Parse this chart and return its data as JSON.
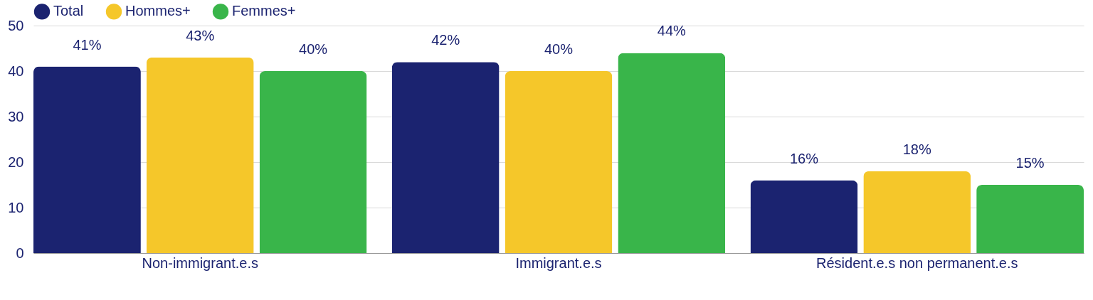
{
  "chart_data": {
    "type": "bar",
    "categories": [
      "Non-immigrant.e.s",
      "Immigrant.e.s",
      "Résident.e.s non permanent.e.s"
    ],
    "series": [
      {
        "name": "Total",
        "color": "#1b2370",
        "values": [
          41,
          42,
          16
        ],
        "value_labels": [
          "41%",
          "42%",
          "16%"
        ]
      },
      {
        "name": "Hommes+",
        "color": "#f5c72a",
        "values": [
          43,
          40,
          18
        ],
        "value_labels": [
          "43%",
          "40%",
          "18%"
        ]
      },
      {
        "name": "Femmes+",
        "color": "#39b54a",
        "values": [
          40,
          44,
          15
        ],
        "value_labels": [
          "40%",
          "44%",
          "15%"
        ]
      }
    ],
    "ylim": [
      0,
      50
    ],
    "yticks": [
      0,
      10,
      20,
      30,
      40,
      50
    ],
    "grid": "y",
    "legend": "top"
  }
}
